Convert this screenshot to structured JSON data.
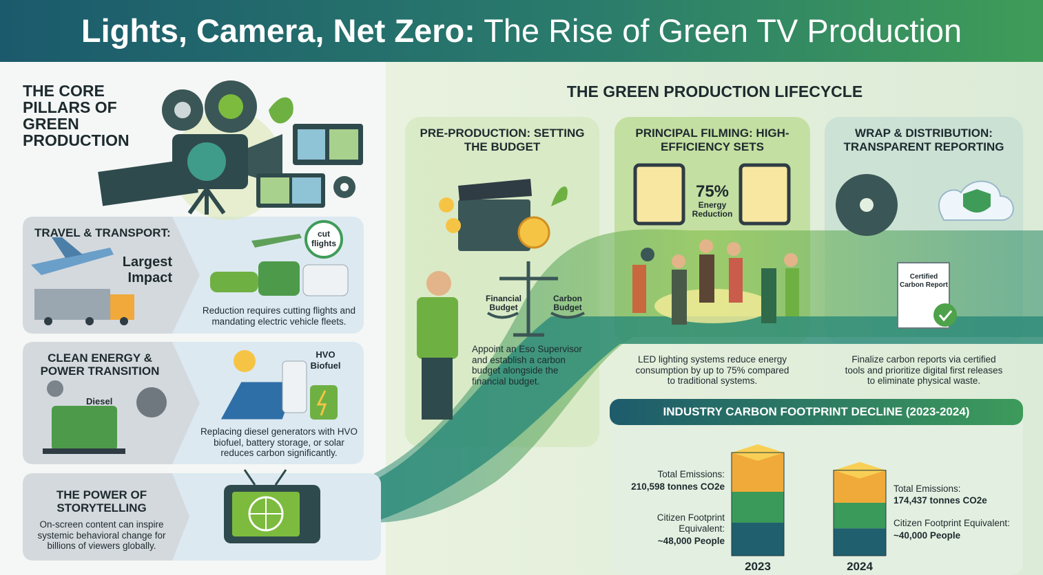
{
  "header": {
    "title_bold": "Lights, Camera, Net Zero:",
    "title_rest": "The Rise of Green TV Production"
  },
  "pillars": {
    "title": "THE CORE PILLARS OF GREEN PRODUCTION",
    "items": [
      {
        "title": "TRAVEL & TRANSPORT:",
        "tag": "Largest Impact",
        "badge": "cut flights",
        "text": "Reduction requires cutting flights and mandating electric vehicle fleets."
      },
      {
        "title": "CLEAN ENERGY & POWER TRANSITION",
        "tag": "Diesel",
        "badge": "HVO Biofuel",
        "text": "Replacing diesel generators with HVO biofuel, battery storage, or solar reduces carbon significantly."
      },
      {
        "title": "THE POWER OF STORYTELLING",
        "text": "On-screen content can inspire systemic behavioral change for billions of viewers globally."
      }
    ]
  },
  "lifecycle": {
    "title": "THE GREEN PRODUCTION LIFECYCLE",
    "stages": [
      {
        "title": "PRE-PRODUCTION: SETTING THE BUDGET",
        "labels": [
          "Financial Budget",
          "Carbon Budget"
        ],
        "text": "Appoint an Eso Supervisor and establish a carbon budget alongside the financial budget."
      },
      {
        "title": "PRINCIPAL FILMING: HIGH-EFFICIENCY SETS",
        "stat": "75%",
        "stat_label": "Energy Reduction",
        "text": "LED lighting systems reduce energy consumption by up to 75% compared to traditional systems."
      },
      {
        "title": "WRAP & DISTRIBUTION: TRANSPARENT REPORTING",
        "doc": "Certified Carbon Report",
        "text": "Finalize carbon reports via certified tools and prioritize digital first releases to eliminate physical waste."
      }
    ]
  },
  "footprint": {
    "title": "INDUSTRY CARBON FOOTPRINT DECLINE (2023-2024)",
    "years": [
      "2023",
      "2024"
    ],
    "emissions": [
      210598,
      174437
    ],
    "emission_label": "Total Emissions:",
    "value_labels": [
      "210,598 tonnes CO2e",
      "174,437 tonnes CO2e"
    ],
    "citizen_label": "Citizen Footprint Equivalent:",
    "citizens": [
      "~48,000 People",
      "~40,000 People"
    ]
  }
}
